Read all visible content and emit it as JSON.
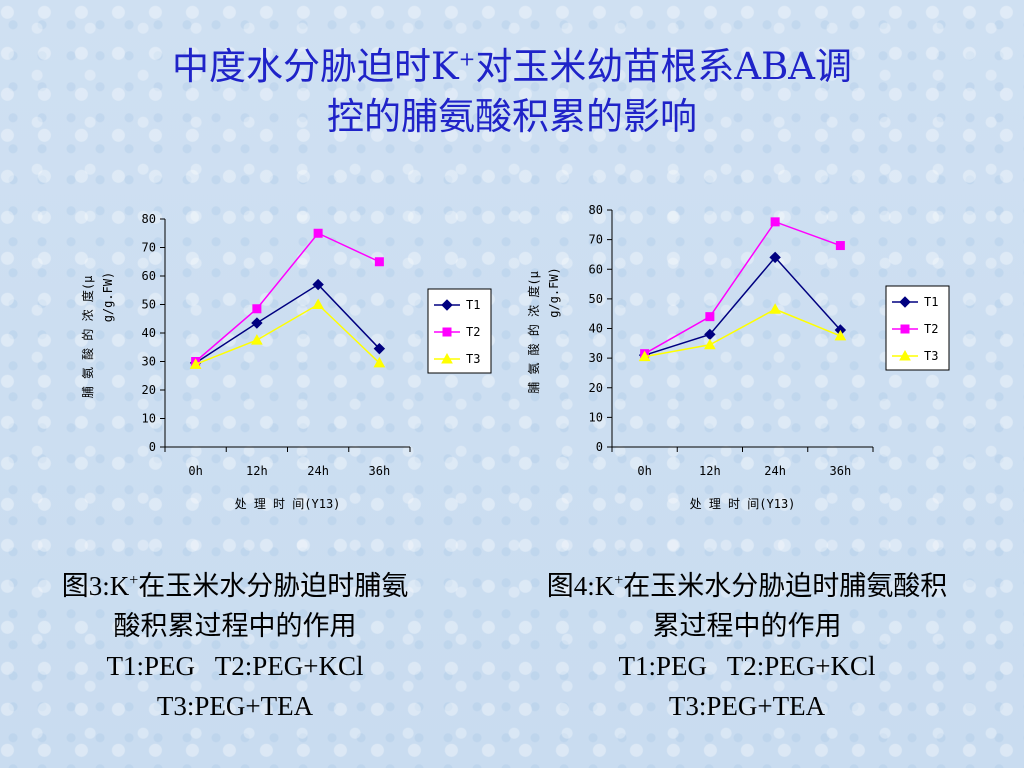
{
  "title": {
    "part1": "中度水分胁迫时K",
    "sup": "+",
    "part2": "对玉米幼苗根系ABA调",
    "line2": "控的脯氨酸积累的影响"
  },
  "chart_data": [
    {
      "type": "line",
      "categories": [
        "0h",
        "12h",
        "24h",
        "36h"
      ],
      "ylim": [
        0,
        80
      ],
      "yticks": [
        0,
        10,
        20,
        30,
        40,
        50,
        60,
        70,
        80
      ],
      "xlabel": "处 理 时 间(Y13)",
      "ylabel_line1": "脯 氨 酸 的 浓 度(μ",
      "ylabel_line2": "g/g.FW)",
      "legend": "right",
      "series": [
        {
          "name": "T1",
          "color": "#000080",
          "marker": "diamond",
          "values": [
            29.5,
            43.5,
            57,
            34.5
          ]
        },
        {
          "name": "T2",
          "color": "#ff00ff",
          "marker": "square",
          "values": [
            30,
            48.5,
            75,
            65
          ]
        },
        {
          "name": "T3",
          "color": "#ffff00",
          "marker": "triangle",
          "values": [
            29,
            37.5,
            50,
            29.5
          ]
        }
      ]
    },
    {
      "type": "line",
      "categories": [
        "0h",
        "12h",
        "24h",
        "36h"
      ],
      "ylim": [
        0,
        80
      ],
      "yticks": [
        0,
        10,
        20,
        30,
        40,
        50,
        60,
        70,
        80
      ],
      "xlabel": "处 理 时 间(Y13)",
      "ylabel_line1": "脯 氨 酸 的 浓 度(μ",
      "ylabel_line2": "g/g.FW)",
      "legend": "right",
      "series": [
        {
          "name": "T1",
          "color": "#000080",
          "marker": "diamond",
          "values": [
            31,
            38,
            64,
            39.5
          ]
        },
        {
          "name": "T2",
          "color": "#ff00ff",
          "marker": "square",
          "values": [
            31.5,
            44,
            76,
            68
          ]
        },
        {
          "name": "T3",
          "color": "#ffff00",
          "marker": "triangle",
          "values": [
            30.5,
            34.5,
            46.5,
            37.5
          ]
        }
      ]
    }
  ],
  "captions": [
    {
      "prefix": "图3:K",
      "sup": "+",
      "rest": "在玉米水分胁迫时脯氨",
      "line2": "酸积累过程中的作用",
      "line3": "T1:PEG   T2:PEG+KCl",
      "line4": "T3:PEG+TEA"
    },
    {
      "prefix": "图4:K",
      "sup": "+",
      "rest": "在玉米水分胁迫时脯氨酸积",
      "line2": "累过程中的作用",
      "line3": "T1:PEG   T2:PEG+KCl",
      "line4": "T3:PEG+TEA"
    }
  ]
}
